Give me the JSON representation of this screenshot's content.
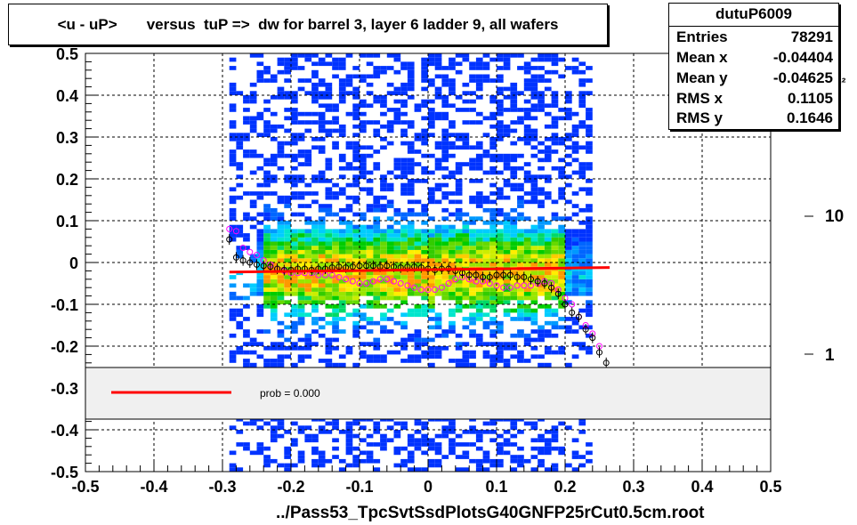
{
  "title": "<u - uP>       versus  tuP =>  dw for barrel 3, layer 6 ladder 9, all wafers",
  "stats": {
    "name": "dutuP6009",
    "rows": [
      {
        "label": "Entries",
        "value": "78291"
      },
      {
        "label": "Mean x",
        "value": "-0.04404"
      },
      {
        "label": "Mean y",
        "value": "-0.04625"
      },
      {
        "label": "RMS x",
        "value": "0.1105"
      },
      {
        "label": "RMS y",
        "value": "0.1646"
      }
    ]
  },
  "legend": {
    "fit_label": "prob = 0.000",
    "fit_color": "#ff0000"
  },
  "footer": "../Pass53_TpcSvtSsdPlotsG40GNFP25rCut0.5cm.root",
  "colorbar": {
    "labels": [
      "10",
      "1"
    ],
    "exponent_fragment": "0²"
  },
  "chart_data": {
    "type": "heatmap",
    "xlim": [
      -0.5,
      0.5
    ],
    "ylim": [
      -0.5,
      0.5
    ],
    "xticks": [
      "-0.5",
      "-0.4",
      "-0.3",
      "-0.2",
      "-0.1",
      "0",
      "0.1",
      "0.2",
      "0.3",
      "0.4",
      "0.5"
    ],
    "yticks": [
      "0.5",
      "0.4",
      "0.3",
      "0.2",
      "0.1",
      "0",
      "-0.1",
      "-0.2",
      "-0.3",
      "-0.4",
      "-0.5"
    ],
    "grid": true,
    "colors": {
      "profile_mean": "#000000",
      "profile_alt": "#ff00ff",
      "fit": "#ff0000",
      "palette": [
        "#6600ff",
        "#3300ff",
        "#0033ff",
        "#0066ff",
        "#0099ff",
        "#00ccff",
        "#00e6cc",
        "#00d966",
        "#00cc00",
        "#33cc00",
        "#66d900",
        "#99e600",
        "#ccee00",
        "#ffee00",
        "#ffcc00",
        "#ff9900"
      ]
    },
    "fit_line": {
      "x": [
        -0.29,
        0.265
      ],
      "y": [
        -0.023,
        -0.012
      ]
    },
    "profile_mean": {
      "x": [
        -0.29,
        -0.28,
        -0.27,
        -0.26,
        -0.25,
        -0.24,
        -0.23,
        -0.22,
        -0.21,
        -0.2,
        -0.19,
        -0.18,
        -0.17,
        -0.16,
        -0.15,
        -0.14,
        -0.13,
        -0.12,
        -0.11,
        -0.1,
        -0.09,
        -0.08,
        -0.07,
        -0.06,
        -0.05,
        -0.04,
        -0.03,
        -0.02,
        -0.01,
        0.0,
        0.01,
        0.02,
        0.03,
        0.04,
        0.05,
        0.06,
        0.07,
        0.08,
        0.09,
        0.1,
        0.11,
        0.12,
        0.13,
        0.14,
        0.15,
        0.16,
        0.17,
        0.18,
        0.19,
        0.2,
        0.21,
        0.22,
        0.23,
        0.24,
        0.25,
        0.26
      ],
      "y": [
        0.055,
        0.012,
        0.005,
        0.0,
        -0.005,
        -0.008,
        -0.01,
        -0.015,
        -0.018,
        -0.018,
        -0.015,
        -0.015,
        -0.018,
        -0.015,
        -0.015,
        -0.012,
        -0.01,
        -0.012,
        -0.01,
        -0.008,
        -0.008,
        -0.008,
        -0.01,
        -0.008,
        -0.01,
        -0.012,
        -0.01,
        -0.01,
        -0.012,
        -0.015,
        -0.018,
        -0.015,
        -0.015,
        -0.02,
        -0.025,
        -0.03,
        -0.03,
        -0.035,
        -0.035,
        -0.03,
        -0.03,
        -0.03,
        -0.035,
        -0.035,
        -0.04,
        -0.045,
        -0.05,
        -0.06,
        -0.075,
        -0.1,
        -0.12,
        -0.13,
        -0.16,
        -0.18,
        -0.215,
        -0.24
      ]
    },
    "profile_alt": {
      "x": [
        -0.29,
        -0.28,
        -0.27,
        -0.26,
        -0.25,
        -0.24,
        -0.23,
        -0.22,
        -0.21,
        -0.2,
        -0.19,
        -0.18,
        -0.17,
        -0.16,
        -0.15,
        -0.14,
        -0.13,
        -0.12,
        -0.11,
        -0.1,
        -0.09,
        -0.08,
        -0.07,
        -0.06,
        -0.05,
        -0.04,
        -0.03,
        -0.02,
        -0.01,
        0.0,
        0.01,
        0.02,
        0.03,
        0.04,
        0.05,
        0.06,
        0.07,
        0.08,
        0.09,
        0.1,
        0.11,
        0.12,
        0.13,
        0.14,
        0.15,
        0.16,
        0.17,
        0.18,
        0.19,
        0.2,
        0.21,
        0.22,
        0.23,
        0.24,
        0.25
      ],
      "y": [
        0.08,
        0.075,
        0.035,
        0.025,
        0.018,
        0.005,
        -0.005,
        -0.015,
        -0.02,
        -0.025,
        -0.025,
        -0.025,
        -0.025,
        -0.03,
        -0.03,
        -0.03,
        -0.035,
        -0.04,
        -0.045,
        -0.05,
        -0.05,
        -0.045,
        -0.04,
        -0.04,
        -0.045,
        -0.05,
        -0.055,
        -0.06,
        -0.065,
        -0.065,
        -0.065,
        -0.06,
        -0.05,
        -0.04,
        -0.035,
        -0.04,
        -0.045,
        -0.045,
        -0.05,
        -0.055,
        -0.06,
        -0.06,
        -0.055,
        -0.055,
        -0.055,
        -0.05,
        -0.045,
        -0.05,
        -0.065,
        -0.085,
        -0.1,
        -0.13,
        -0.15,
        -0.17,
        -0.2
      ]
    }
  }
}
